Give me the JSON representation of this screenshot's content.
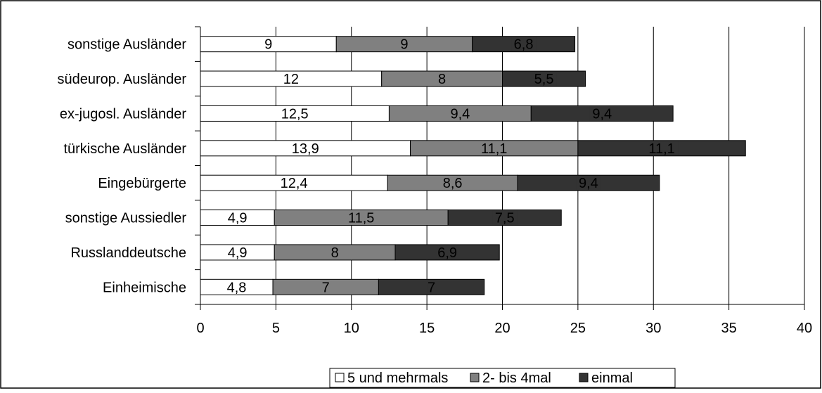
{
  "chart_data": {
    "type": "bar",
    "orientation": "horizontal",
    "stacked": true,
    "title": "",
    "xlabel": "",
    "ylabel": "",
    "xlim": [
      0,
      40
    ],
    "x_ticks": [
      0,
      5,
      10,
      15,
      20,
      25,
      30,
      35,
      40
    ],
    "grid": "vertical lines at each x tick",
    "legend_position": "bottom",
    "categories": [
      "sonstige Ausländer",
      "südeurop. Ausländer",
      "ex-jugosl. Ausländer",
      "türkische Ausländer",
      "Eingebürgerte",
      "sonstige Aussiedler",
      "Russlanddeutsche",
      "Einheimische"
    ],
    "series": [
      {
        "name": "5 und mehrmals",
        "color": "#ffffff",
        "values": [
          9,
          12,
          12.5,
          13.9,
          12.4,
          4.9,
          4.9,
          4.8
        ],
        "labels": [
          "9",
          "12",
          "12,5",
          "13,9",
          "12,4",
          "4,9",
          "4,9",
          "4,8"
        ]
      },
      {
        "name": "2- bis 4mal",
        "color": "#808080",
        "values": [
          9,
          8,
          9.4,
          11.1,
          8.6,
          11.5,
          8,
          7
        ],
        "labels": [
          "9",
          "8",
          "9,4",
          "11,1",
          "8,6",
          "11,5",
          "8",
          "7"
        ]
      },
      {
        "name": "einmal",
        "color": "#333333",
        "values": [
          6.8,
          5.5,
          9.4,
          11.1,
          9.4,
          7.5,
          6.9,
          7
        ],
        "labels": [
          "6,8",
          "5,5",
          "9,4",
          "11,1",
          "9,4",
          "7,5",
          "6,9",
          "7"
        ]
      }
    ]
  }
}
